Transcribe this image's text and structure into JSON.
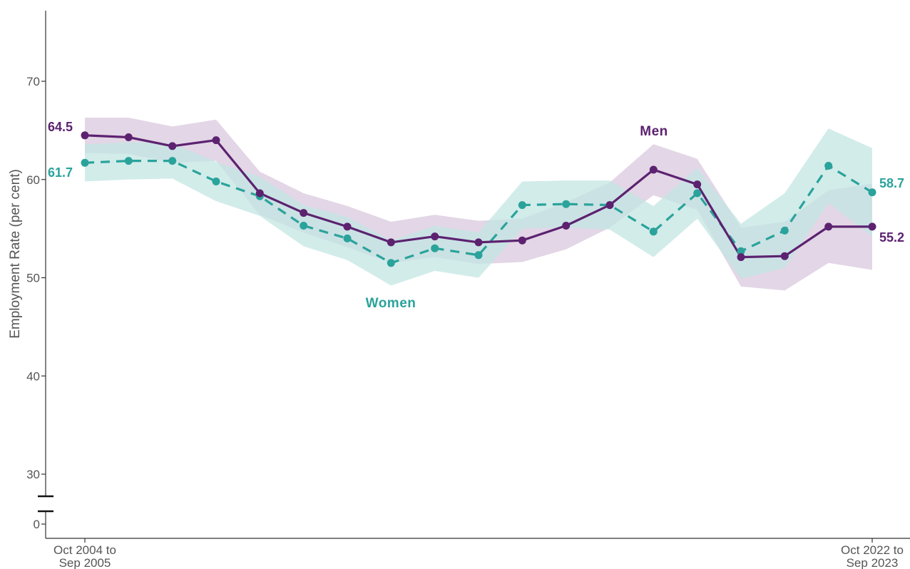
{
  "chart_data": {
    "type": "line",
    "ylabel": "Employment Rate (per cent)",
    "xlabel": "",
    "ylim": [
      0,
      75
    ],
    "y_axis_break": [
      0,
      30
    ],
    "y_ticks": [
      "0",
      "30",
      "40",
      "50",
      "60",
      "70"
    ],
    "x_tick_labels": [
      {
        "line1": "Oct 2004 to",
        "line2": "Sep 2005"
      },
      {
        "line1": "Oct 2022 to",
        "line2": "Sep 2023"
      }
    ],
    "grid": false,
    "x_count": 19,
    "series": [
      {
        "name": "Men",
        "color": "#5c2270",
        "band_color": "#d9c8de",
        "line_style": "solid",
        "values": [
          64.5,
          64.3,
          63.4,
          64.0,
          58.6,
          56.6,
          55.2,
          53.6,
          54.2,
          53.6,
          53.8,
          55.3,
          57.4,
          61.0,
          59.5,
          52.1,
          52.2,
          55.2,
          55.2
        ],
        "lower": [
          62.7,
          62.6,
          61.7,
          61.9,
          56.4,
          54.6,
          53.1,
          51.5,
          52.1,
          51.4,
          51.6,
          52.9,
          55.1,
          58.4,
          56.9,
          49.1,
          48.7,
          51.5,
          50.8
        ],
        "upper": [
          66.3,
          66.3,
          65.4,
          66.1,
          60.8,
          58.6,
          57.3,
          55.7,
          56.4,
          55.8,
          56.0,
          57.7,
          59.7,
          63.6,
          62.1,
          55.1,
          55.7,
          58.9,
          59.6
        ]
      },
      {
        "name": "Women",
        "color": "#2aa39b",
        "band_color": "#c3e6e3",
        "line_style": "dashed",
        "values": [
          61.7,
          61.9,
          61.9,
          59.8,
          58.3,
          55.3,
          54.0,
          51.5,
          53.0,
          52.3,
          57.4,
          57.5,
          57.4,
          54.7,
          58.6,
          52.7,
          54.8,
          61.4,
          58.7
        ],
        "lower": [
          59.8,
          60.0,
          60.1,
          57.8,
          56.3,
          53.2,
          51.8,
          49.2,
          50.7,
          50.0,
          55.0,
          55.1,
          54.9,
          52.1,
          56.0,
          49.9,
          51.0,
          57.6,
          54.2
        ],
        "upper": [
          63.6,
          63.8,
          63.7,
          61.8,
          60.3,
          57.4,
          56.2,
          53.8,
          55.3,
          54.6,
          59.8,
          59.9,
          59.9,
          57.3,
          61.2,
          55.5,
          58.6,
          65.2,
          63.2
        ]
      }
    ],
    "annotations": {
      "men_label": "Men",
      "women_label": "Women",
      "men_start": "64.5",
      "women_start": "61.7",
      "men_end": "55.2",
      "women_end": "58.7"
    }
  }
}
